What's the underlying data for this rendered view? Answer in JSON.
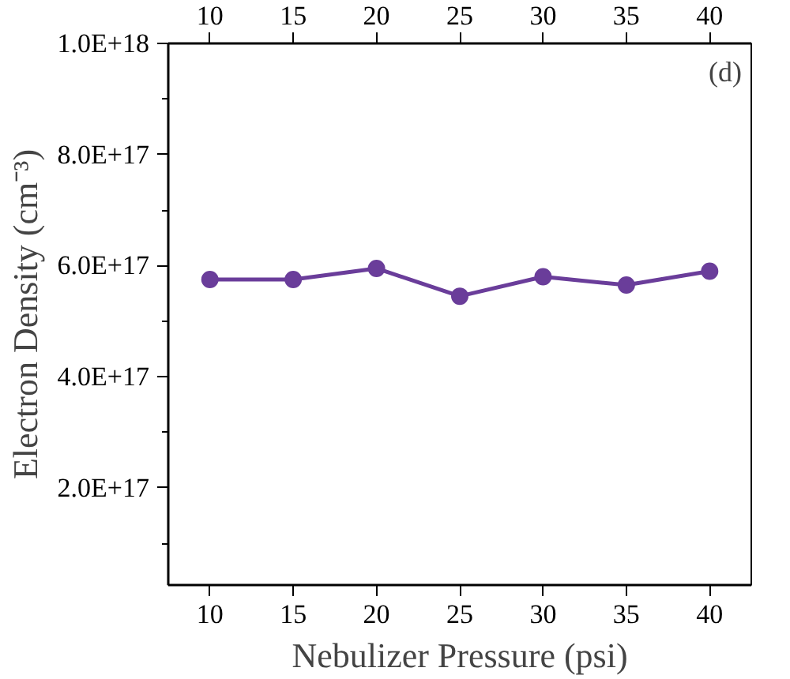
{
  "chart_data": {
    "type": "line",
    "xlabel": "Nebulizer Pressure (psi)",
    "ylabel": "Electron Density (cm⁻³)",
    "annotations": [
      "(d)"
    ],
    "x": [
      10,
      15,
      20,
      25,
      30,
      35,
      40
    ],
    "series": [
      {
        "color": "#6a3d9a",
        "values": [
          5.75e+17,
          5.75e+17,
          5.95e+17,
          5.45e+17,
          5.8e+17,
          5.65e+17,
          5.9e+17
        ]
      }
    ],
    "marker": "circle",
    "line_style": "solid",
    "grid": false,
    "xlim": [
      7.5,
      42.5
    ],
    "xticks": [
      10,
      15,
      20,
      25,
      30,
      35,
      40
    ],
    "x2lim": [
      7.5,
      42.5
    ],
    "x2ticks": [
      10,
      15,
      20,
      25,
      30,
      35,
      40
    ],
    "ylim": [
      2.5e+16,
      1e+18
    ],
    "yticks": [
      {
        "value": 1e+17,
        "label": null
      },
      {
        "value": 2e+17,
        "label": "2.0E+17"
      },
      {
        "value": 3e+17,
        "label": null
      },
      {
        "value": 4e+17,
        "label": "4.0E+17"
      },
      {
        "value": 5e+17,
        "label": null
      },
      {
        "value": 6e+17,
        "label": "6.0E+17"
      },
      {
        "value": 7e+17,
        "label": null
      },
      {
        "value": 8e+17,
        "label": "8.0E+17"
      },
      {
        "value": 9e+17,
        "label": null
      },
      {
        "value": 1e+18,
        "label": "1.0E+18"
      }
    ]
  }
}
